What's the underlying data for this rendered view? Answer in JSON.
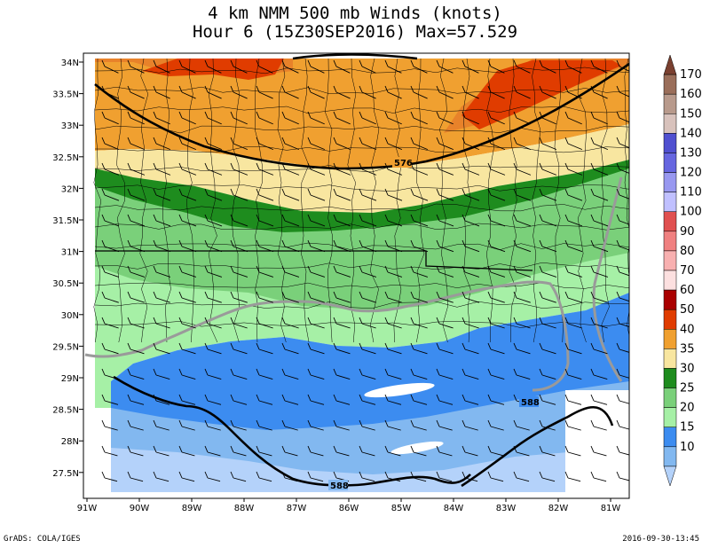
{
  "figure": {
    "title_line1": "4 km NMM 500 mb Winds (knots)",
    "title_line2": "Hour 6 (15Z30SEP2016) Max=57.529",
    "credit": "GrADS: COLA/IGES",
    "timestamp": "2016-09-30-13:45"
  },
  "map": {
    "lat_range": [
      27.2,
      34.1
    ],
    "lon_range": [
      -91,
      -80.8
    ],
    "lat_ticks": [
      "34N",
      "33.5N",
      "33N",
      "32.5N",
      "32N",
      "31.5N",
      "31N",
      "30.5N",
      "30N",
      "29.5N",
      "29N",
      "28.5N",
      "28N",
      "27.5N"
    ],
    "lon_ticks": [
      "91W",
      "90W",
      "89W",
      "88W",
      "87W",
      "86W",
      "85W",
      "84W",
      "83W",
      "82W",
      "81W"
    ],
    "contour_labels": [
      "576",
      "588",
      "588"
    ]
  },
  "colorbar": {
    "levels": [
      "170",
      "160",
      "150",
      "140",
      "130",
      "120",
      "110",
      "100",
      "90",
      "80",
      "70",
      "60",
      "50",
      "40",
      "35",
      "30",
      "25",
      "20",
      "15",
      "10"
    ],
    "colors": [
      "#7a4030",
      "#9a6e5a",
      "#b89a8c",
      "#d8c2bc",
      "#5050d0",
      "#6666e0",
      "#9898f0",
      "#c0c0ff",
      "#e05050",
      "#f08080",
      "#f8b0b0",
      "#fce0e0",
      "#aa0000",
      "#e03c00",
      "#f0a030",
      "#f8e6a0",
      "#1e8c1e",
      "#7ad07a",
      "#a6f0a6",
      "#3c8cf0",
      "#82b8f0",
      "#b4d2fa"
    ]
  },
  "chart_data": {
    "type": "heatmap",
    "title": "4 km NMM 500 mb Winds (knots)",
    "subtitle": "Hour 6 (15Z30SEP2016) Max=57.529",
    "units": "knots",
    "max_value": 57.529,
    "x_axis": [
      "91W",
      "90W",
      "89W",
      "88W",
      "87W",
      "86W",
      "85W",
      "84W",
      "83W",
      "82W",
      "81W"
    ],
    "y_axis": [
      "34N",
      "33.5N",
      "33N",
      "32.5N",
      "32N",
      "31.5N",
      "31N",
      "30.5N",
      "30N",
      "29.5N",
      "29N",
      "28.5N",
      "28N",
      "27.5N"
    ],
    "color_levels": [
      10,
      15,
      20,
      25,
      30,
      35,
      40,
      50,
      60,
      70,
      80,
      90,
      100,
      110,
      120,
      130,
      140,
      150,
      160,
      170
    ],
    "height_contours": [
      576,
      588
    ]
  }
}
